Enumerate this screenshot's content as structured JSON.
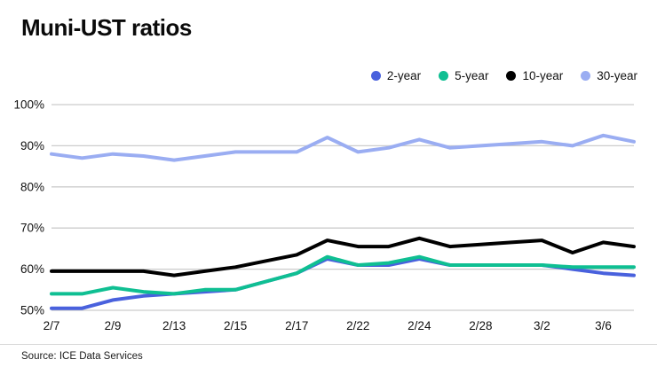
{
  "title": "Muni-UST ratios",
  "source": "Source: ICE Data Services",
  "chart_data": {
    "type": "line",
    "title": "Muni-UST ratios",
    "xlabel": "",
    "ylabel": "",
    "ylim": [
      50,
      100
    ],
    "ytick_step": 10,
    "ytick_suffix": "%",
    "grid": true,
    "legend_position": "top-right",
    "grid_color": "#cccccc",
    "text_color": "#111111",
    "x": [
      "2/7",
      "2/8",
      "2/9",
      "2/10",
      "2/13",
      "2/14",
      "2/15",
      "2/16",
      "2/17",
      "2/21",
      "2/22",
      "2/23",
      "2/24",
      "2/27",
      "2/28",
      "3/1",
      "3/2",
      "3/3",
      "3/6",
      "3/7"
    ],
    "x_tick_labels": [
      "2/7",
      "2/9",
      "2/13",
      "2/15",
      "2/17",
      "2/22",
      "2/24",
      "2/28",
      "3/2",
      "3/6"
    ],
    "x_tick_every": 2,
    "series": [
      {
        "name": "2-year",
        "color": "#4961dd",
        "values": [
          50.5,
          50.5,
          52.5,
          53.5,
          54,
          54.5,
          55,
          57,
          59,
          62.5,
          61,
          61,
          62.5,
          61,
          61,
          61,
          61,
          60,
          59,
          58.5
        ]
      },
      {
        "name": "5-year",
        "color": "#0fbf92",
        "values": [
          54,
          54,
          55.5,
          54.5,
          54,
          55,
          55,
          57,
          59,
          63,
          61,
          61.5,
          63,
          61,
          61,
          61,
          61,
          60.5,
          60.5,
          60.5
        ]
      },
      {
        "name": "10-year",
        "color": "#000000",
        "values": [
          59.5,
          59.5,
          59.5,
          59.5,
          58.5,
          59.5,
          60.5,
          62,
          63.5,
          67,
          65.5,
          65.5,
          67.5,
          65.5,
          66,
          66.5,
          67,
          64,
          66.5,
          65.5
        ]
      },
      {
        "name": "30-year",
        "color": "#9aadf2",
        "values": [
          88,
          87,
          88,
          87.5,
          86.5,
          87.5,
          88.5,
          88.5,
          88.5,
          92,
          88.5,
          89.5,
          91.5,
          89.5,
          90,
          90.5,
          91,
          90,
          92.5,
          91
        ]
      }
    ]
  }
}
